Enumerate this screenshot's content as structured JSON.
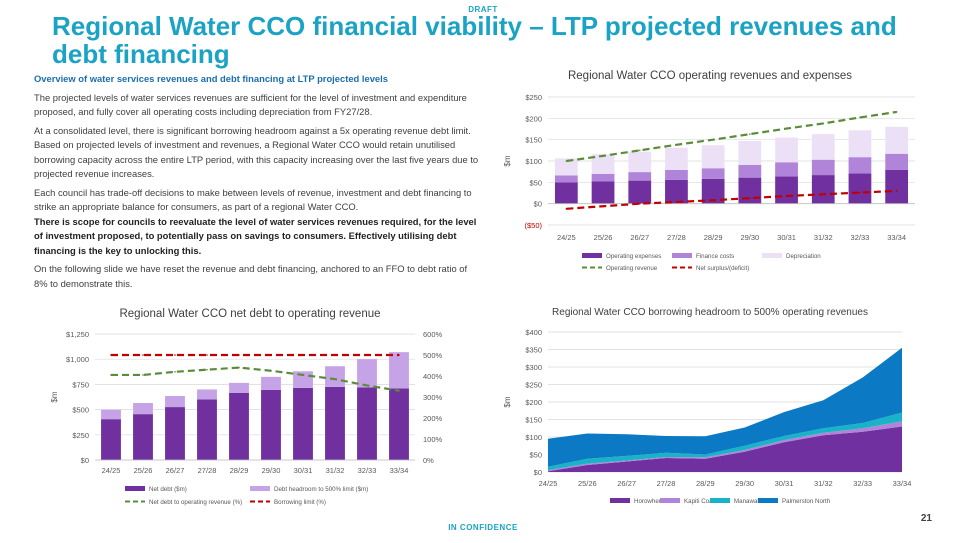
{
  "header": {
    "draft_label": "DRAFT",
    "title": "Regional Water CCO financial viability – LTP projected revenues and debt financing"
  },
  "body": {
    "subheading": "Overview of water services revenues and debt financing at LTP projected levels",
    "p1": "The projected levels of water services revenues are sufficient for the level of investment and expenditure proposed, and fully cover all operating costs including depreciation from FY27/28.",
    "p2": "At a consolidated level, there is significant borrowing headroom against a 5x operating revenue debt limit. Based on projected levels of investment and revenues, a Regional Water CCO would retain unutilised borrowing capacity across the entire LTP period, with this capacity increasing over the last five years due to projected revenue increases.",
    "p3": "Each council has trade-off decisions to make between levels of revenue, investment and debt financing to strike an appropriate balance for consumers, as part of a regional Water CCO.",
    "p3_bold": "There is scope for councils to reevaluate the level of water services revenues required, for the level of investment proposed, to potentially pass on savings to consumers. Effectively utilising debt financing is the key to unlocking this.",
    "p4": "On the following slide we have reset the revenue and debt financing, anchored to an FFO to debt ratio of 8% to demonstrate this."
  },
  "footer": {
    "label": "IN CONFIDENCE",
    "page": "21"
  },
  "colors": {
    "accent": "#1aa3c4",
    "dark_purple": "#7030a0",
    "mid_purple": "#b084d9",
    "light_purple": "#ece0f7",
    "green_dash": "#5b8c3a",
    "red_dash": "#c00000",
    "teal": "#19b3c8",
    "blue": "#0b79c4"
  },
  "chart_data": [
    {
      "id": "opex",
      "type": "bar",
      "title": "Regional Water CCO operating revenues and expenses",
      "ylabel": "$m",
      "ylim": [
        -50,
        250
      ],
      "yticks": [
        -50,
        0,
        50,
        100,
        150,
        200,
        250
      ],
      "ytick_labels": [
        "($50)",
        "$0",
        "$50",
        "$100",
        "$150",
        "$200",
        "$250"
      ],
      "categories": [
        "24/25",
        "25/26",
        "26/27",
        "27/28",
        "28/29",
        "29/30",
        "30/31",
        "31/32",
        "32/33",
        "33/34"
      ],
      "stacked_series": [
        {
          "name": "Operating expenses",
          "color": "#7030a0",
          "values": [
            50,
            52,
            54,
            56,
            58,
            61,
            64,
            67,
            71,
            79
          ]
        },
        {
          "name": "Finance costs",
          "color": "#b084d9",
          "values": [
            16,
            18,
            20,
            23,
            25,
            30,
            33,
            36,
            38,
            38
          ]
        },
        {
          "name": "Depreciation",
          "color": "#ece0f7",
          "values": [
            40,
            46,
            48,
            52,
            54,
            56,
            58,
            60,
            63,
            63
          ]
        }
      ],
      "line_series": [
        {
          "name": "Operating revenue",
          "color": "#5b8c3a",
          "values": [
            100,
            112,
            125,
            138,
            150,
            163,
            176,
            188,
            202,
            215
          ]
        },
        {
          "name": "Net surplus/(deficit)",
          "color": "#c00000",
          "values": [
            -12,
            -6,
            0,
            4,
            8,
            13,
            18,
            22,
            26,
            30
          ]
        }
      ]
    },
    {
      "id": "netdebt",
      "type": "bar",
      "title": "Regional Water CCO net debt to operating revenue",
      "ylabel": "$m",
      "ylim": [
        0,
        1250
      ],
      "yticks": [
        0,
        250,
        500,
        750,
        1000,
        1250
      ],
      "ytick_labels": [
        "$0",
        "$250",
        "$500",
        "$750",
        "$1,000",
        "$1,250"
      ],
      "y2lim": [
        0,
        600
      ],
      "y2ticks": [
        0,
        100,
        200,
        300,
        400,
        500,
        600
      ],
      "y2tick_labels": [
        "0%",
        "100%",
        "200%",
        "300%",
        "400%",
        "500%",
        "600%"
      ],
      "categories": [
        "24/25",
        "25/26",
        "26/27",
        "27/28",
        "28/29",
        "29/30",
        "30/31",
        "31/32",
        "32/33",
        "33/34"
      ],
      "stacked_series": [
        {
          "name": "Net debt ($m)",
          "color": "#7030a0",
          "values": [
            405,
            455,
            525,
            600,
            665,
            695,
            715,
            725,
            720,
            710
          ]
        },
        {
          "name": "Debt headroom to 500% limit ($m)",
          "color": "#c6a3e6",
          "values": [
            95,
            110,
            110,
            100,
            100,
            130,
            165,
            205,
            280,
            360
          ]
        }
      ],
      "line_series": [
        {
          "name": "Net debt to operating revenue (%)",
          "color": "#5b8c3a",
          "axis": "y2",
          "values": [
            405,
            405,
            420,
            430,
            440,
            425,
            405,
            385,
            355,
            330
          ]
        },
        {
          "name": "Borrowing limit (%)",
          "color": "#c00000",
          "axis": "y2",
          "values": [
            500,
            500,
            500,
            500,
            500,
            500,
            500,
            500,
            500,
            500
          ]
        }
      ]
    },
    {
      "id": "headroom",
      "type": "area",
      "title": "Regional Water CCO borrowing headroom to 500% operating revenues",
      "ylabel": "$m",
      "ylim": [
        0,
        400
      ],
      "yticks": [
        0,
        50,
        100,
        150,
        200,
        250,
        300,
        350,
        400
      ],
      "ytick_labels": [
        "$0",
        "$50",
        "$100",
        "$150",
        "$200",
        "$250",
        "$300",
        "$350",
        "$400"
      ],
      "categories": [
        "24/25",
        "25/26",
        "26/27",
        "27/28",
        "28/29",
        "29/30",
        "30/31",
        "31/32",
        "32/33",
        "33/34"
      ],
      "stacked_series": [
        {
          "name": "Horowhenua",
          "color": "#7030a0",
          "values": [
            2,
            20,
            30,
            40,
            38,
            58,
            85,
            105,
            115,
            130
          ]
        },
        {
          "name": "Kapiti Coast",
          "color": "#b084d9",
          "values": [
            3,
            4,
            3,
            3,
            4,
            5,
            6,
            7,
            10,
            15
          ]
        },
        {
          "name": "Manawatu",
          "color": "#19b3c8",
          "values": [
            10,
            14,
            13,
            12,
            8,
            12,
            12,
            13,
            15,
            25
          ]
        },
        {
          "name": "Palmerston North",
          "color": "#0b79c4",
          "values": [
            80,
            72,
            62,
            48,
            52,
            52,
            68,
            80,
            130,
            185
          ]
        }
      ]
    }
  ]
}
